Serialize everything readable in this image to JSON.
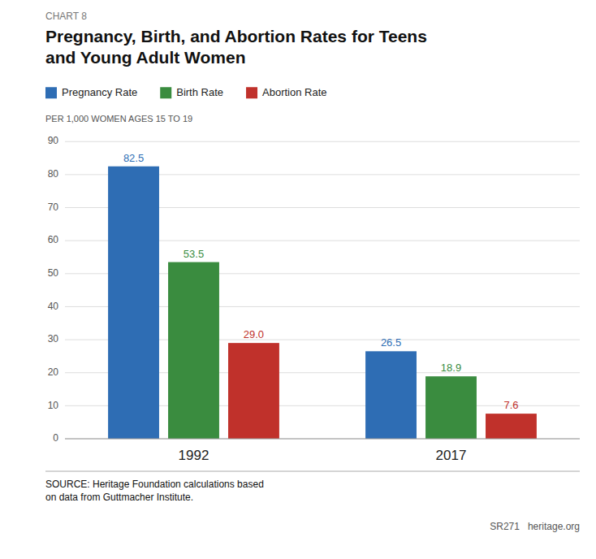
{
  "chart_data": {
    "type": "bar",
    "title": "Pregnancy, Birth, and Abortion Rates for Teens\nand Young Adult Women",
    "ylabel": "PER 1,000 WOMEN AGES 15 TO 19",
    "annotations": [
      "CHART 8",
      "SOURCE: Heritage Foundation calculations based\non data from Guttmacher Institute.",
      "SR271   heritage.org"
    ],
    "categories": [
      "1992",
      "2017"
    ],
    "series": [
      {
        "name": "Pregnancy Rate",
        "color": "#2E6DB4",
        "values": [
          82.5,
          26.5
        ]
      },
      {
        "name": "Birth Rate",
        "color": "#3A8C3F",
        "values": [
          53.5,
          18.9
        ]
      },
      {
        "name": "Abortion Rate",
        "color": "#C0312B",
        "values": [
          29.0,
          7.6
        ],
        "value_labels": [
          "29.0",
          "7.6"
        ]
      }
    ],
    "ylim": [
      0,
      90
    ],
    "yticks": [
      0,
      10,
      20,
      30,
      40,
      50,
      60,
      70,
      80,
      90
    ],
    "grid": true,
    "legend": "upper left",
    "data_labels": true
  }
}
